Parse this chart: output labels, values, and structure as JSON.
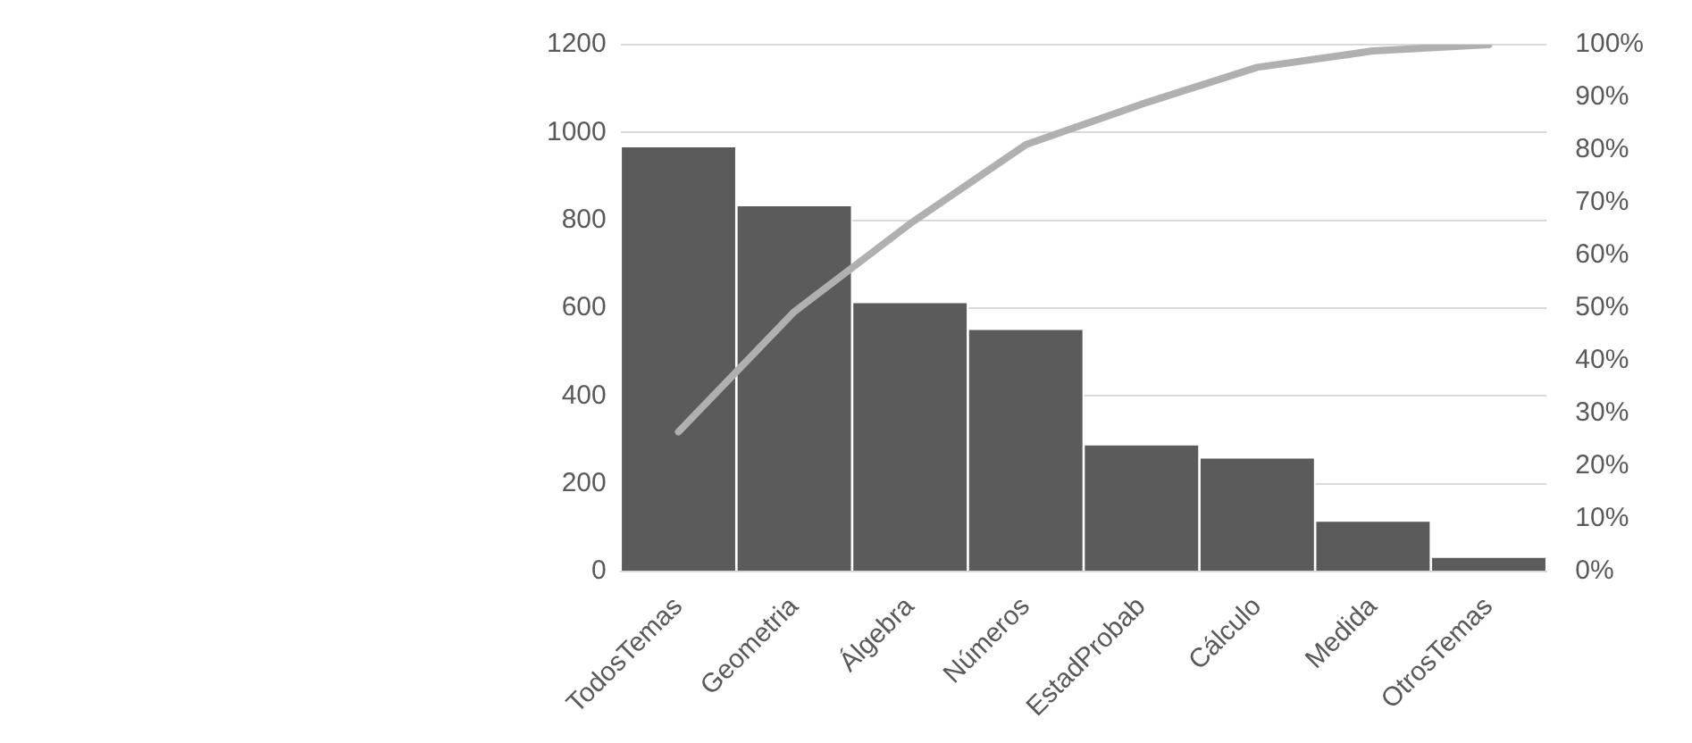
{
  "chart_data": {
    "type": "bar",
    "categories": [
      "TodosTemas",
      "Geometria",
      "Álgebra",
      "Números",
      "EstadProbab",
      "Cálculo",
      "Medida",
      "OtrosTemas"
    ],
    "series": [
      {
        "color": "#5b5b5b",
        "values": [
          966,
          832,
          611,
          550,
          287,
          257,
          113,
          31
        ]
      },
      {
        "type": "line",
        "axis": "y2",
        "color": "#b0b0b0",
        "values": [
          26.5,
          49.3,
          66,
          81,
          88.7,
          95.7,
          98.8,
          100
        ]
      }
    ],
    "ylim": [
      0,
      1200
    ],
    "yticks": [
      0,
      200,
      400,
      600,
      800,
      1000,
      1200
    ],
    "y2lim": [
      0,
      100
    ],
    "y2ticks": [
      {
        "value": 0,
        "label": "0%"
      },
      {
        "value": 10,
        "label": "10%"
      },
      {
        "value": 20,
        "label": "20%"
      },
      {
        "value": 30,
        "label": "30%"
      },
      {
        "value": 40,
        "label": "40%"
      },
      {
        "value": 50,
        "label": "50%"
      },
      {
        "value": 60,
        "label": "60%"
      },
      {
        "value": 70,
        "label": "70%"
      },
      {
        "value": 80,
        "label": "80%"
      },
      {
        "value": 90,
        "label": "90%"
      },
      {
        "value": 100,
        "label": "100%"
      }
    ],
    "grid": "y",
    "legend": false,
    "marker": "none",
    "line_style": "solid"
  }
}
